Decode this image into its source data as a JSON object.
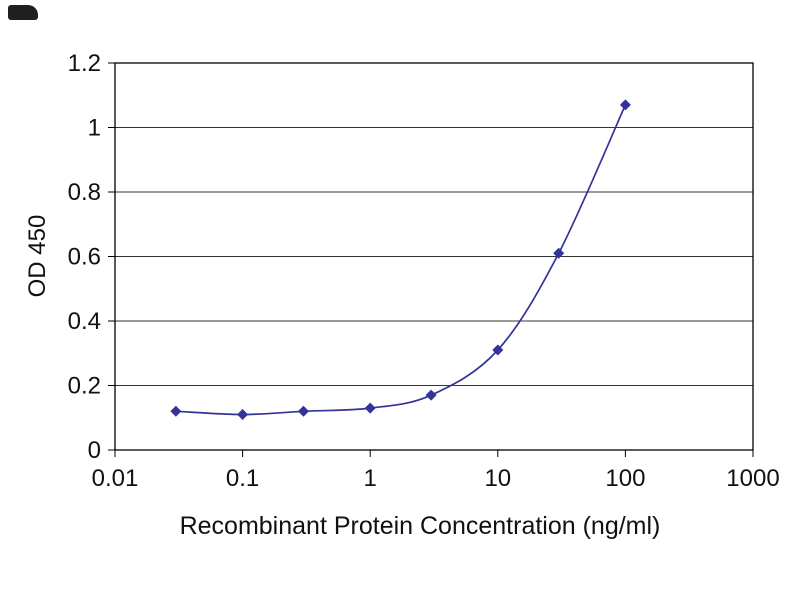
{
  "page": {
    "background_color": "#ffffff"
  },
  "marks": {
    "top_left_logo_fragment": "dark-rounded-rectangle"
  },
  "chart_data": {
    "type": "line",
    "title": "",
    "xlabel": "Recombinant Protein Concentration (ng/ml)",
    "ylabel": "OD 450",
    "x_scale": "log",
    "y_scale": "linear",
    "xlim": [
      0.01,
      1000
    ],
    "ylim": [
      0,
      1.2
    ],
    "x_ticks": [
      0.01,
      0.1,
      1,
      10,
      100,
      1000
    ],
    "x_tick_labels": [
      "0.01",
      "0.1",
      "1",
      "10",
      "100",
      "1000"
    ],
    "y_ticks": [
      0,
      0.2,
      0.4,
      0.6,
      0.8,
      1,
      1.2
    ],
    "y_tick_labels": [
      "0",
      "0.2",
      "0.4",
      "0.6",
      "0.8",
      "1",
      "1.2"
    ],
    "grid": "horizontal",
    "legend": "none",
    "colors": {
      "line": "#333399",
      "marker": "#333399",
      "gridline": "#333333",
      "plot_border": "#000000",
      "text": "#111111"
    },
    "series": [
      {
        "name": "OD 450",
        "color": "#333399",
        "marker": "diamond",
        "x": [
          0.03,
          0.1,
          0.3,
          1,
          3,
          10,
          30,
          100
        ],
        "y": [
          0.12,
          0.11,
          0.12,
          0.13,
          0.17,
          0.31,
          0.61,
          1.07
        ]
      }
    ]
  }
}
